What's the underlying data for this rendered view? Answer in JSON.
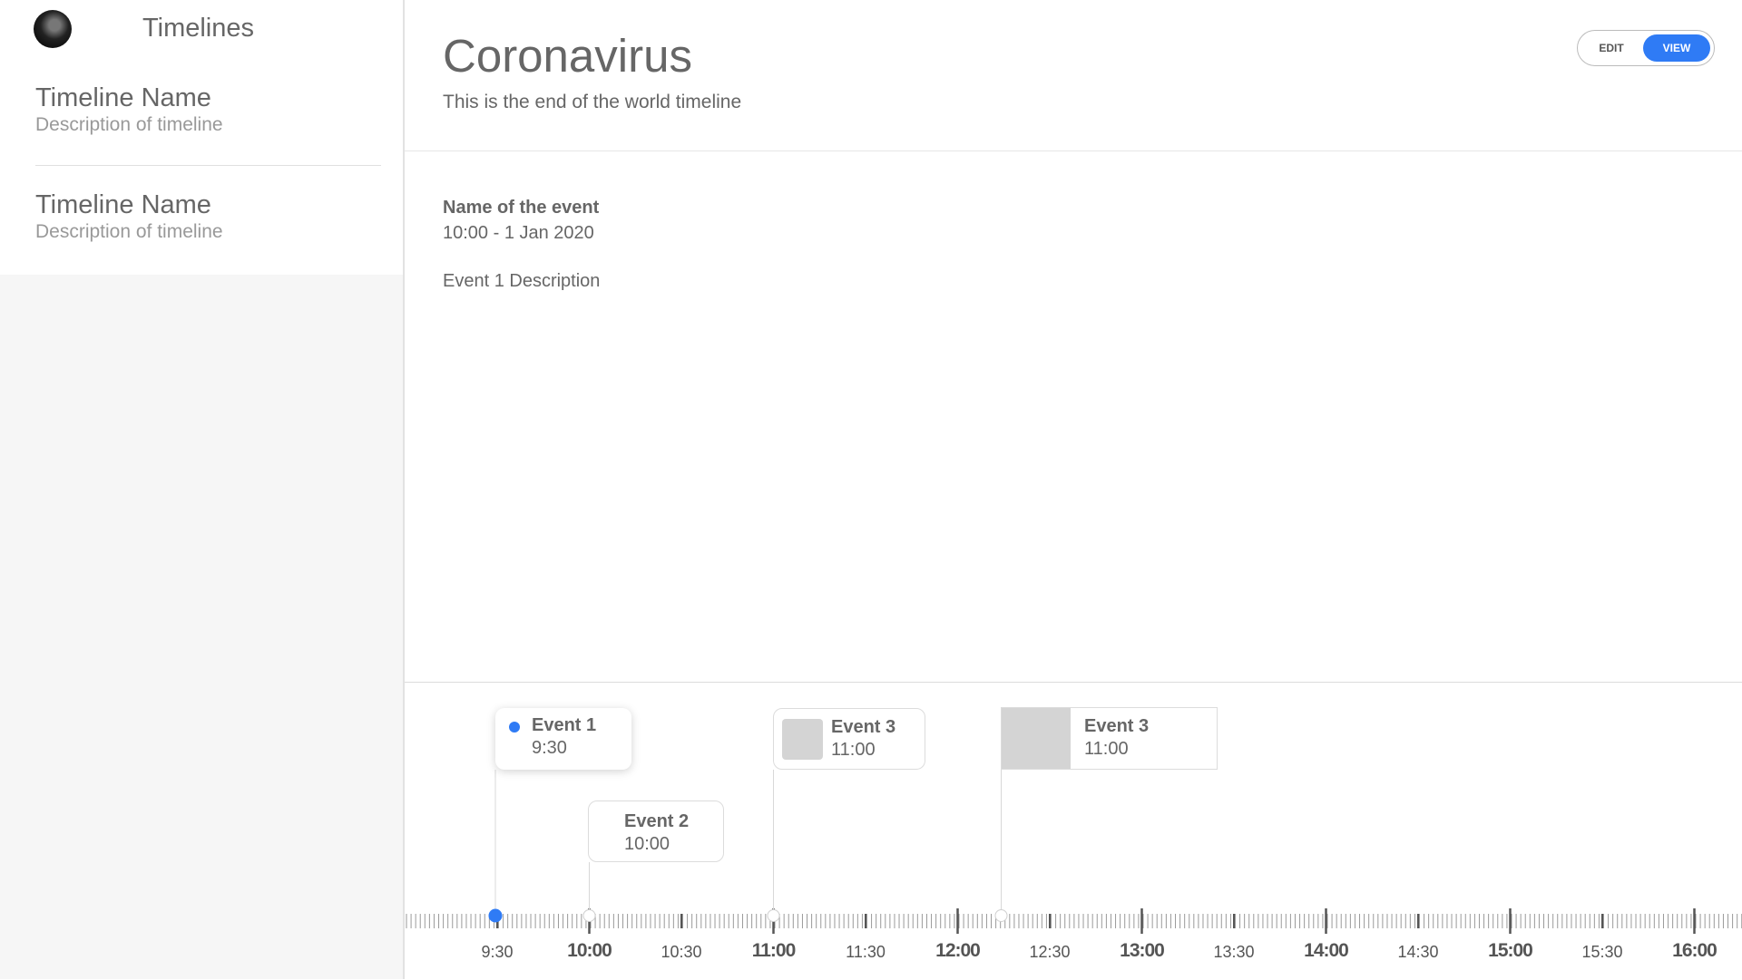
{
  "sidebar": {
    "title": "Timelines",
    "items": [
      {
        "name": "Timeline Name",
        "description": "Description of timeline"
      },
      {
        "name": "Timeline Name",
        "description": "Description of timeline"
      }
    ]
  },
  "header": {
    "title": "Coronavirus",
    "subtitle": "This is the end of the world timeline",
    "edit_label": "EDIT",
    "view_label": "VIEW",
    "active_mode": "VIEW"
  },
  "selected_event": {
    "name": "Name of the event",
    "datetime": "10:00 - 1 Jan 2020",
    "description": "Event 1 Description"
  },
  "timeline": {
    "events": [
      {
        "title": "Event 1",
        "time": "9:30"
      },
      {
        "title": "Event 2",
        "time": "10:00"
      },
      {
        "title": "Event 3",
        "time": "11:00"
      },
      {
        "title": "Event 3",
        "time": "11:00"
      }
    ],
    "ticks": [
      {
        "label": "9:30",
        "major": false
      },
      {
        "label": "10:00",
        "major": true
      },
      {
        "label": "10:30",
        "major": false
      },
      {
        "label": "11:00",
        "major": true
      },
      {
        "label": "11:30",
        "major": false
      },
      {
        "label": "12:00",
        "major": true
      },
      {
        "label": "12:30",
        "major": false
      },
      {
        "label": "13:00",
        "major": true
      },
      {
        "label": "13:30",
        "major": false
      },
      {
        "label": "14:00",
        "major": true
      },
      {
        "label": "14:30",
        "major": false
      },
      {
        "label": "15:00",
        "major": true
      },
      {
        "label": "15:30",
        "major": false
      },
      {
        "label": "16:00",
        "major": true
      }
    ]
  },
  "colors": {
    "accent": "#2f7bf5",
    "text": "#666666",
    "muted": "#999999"
  }
}
